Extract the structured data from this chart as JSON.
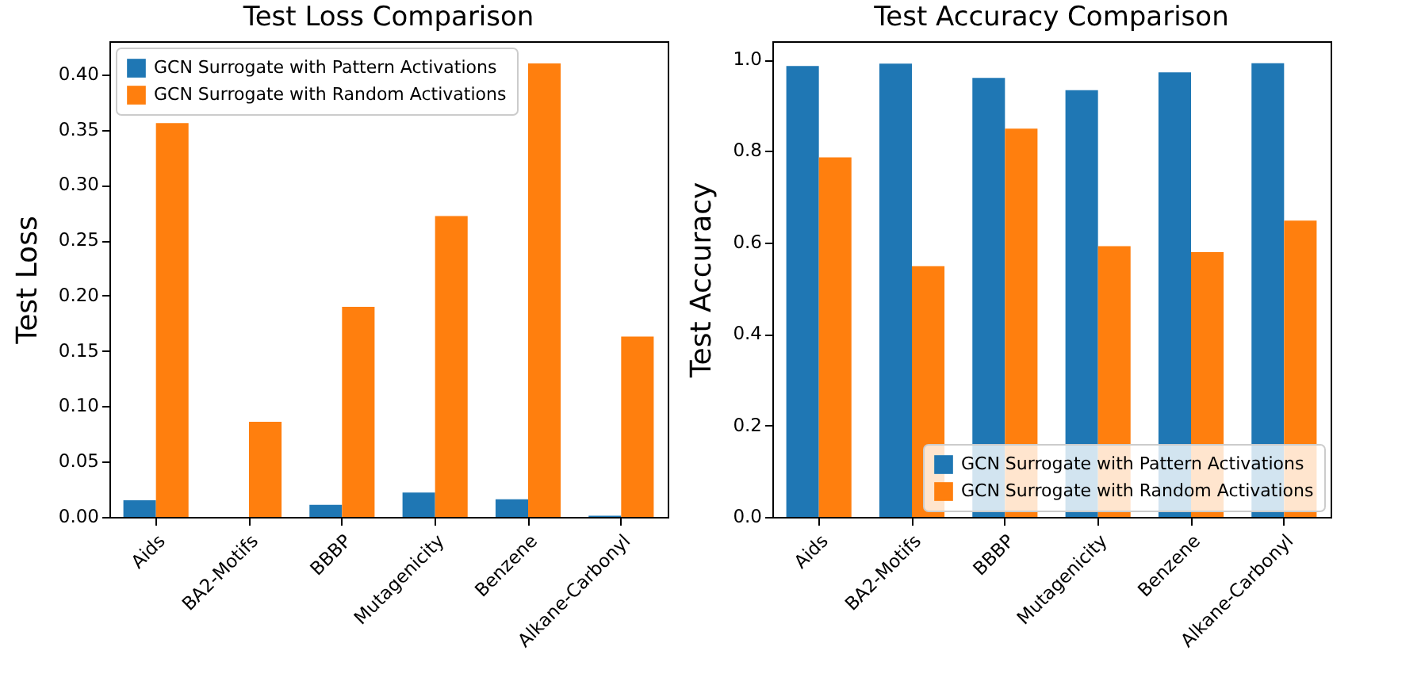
{
  "chart_data": [
    {
      "type": "bar",
      "title": "Test Loss Comparison",
      "ylabel": "Test Loss",
      "categories": [
        "Aids",
        "BA2-Motifs",
        "BBBP",
        "Mutagenicity",
        "Benzene",
        "Alkane-Carbonyl"
      ],
      "series": [
        {
          "name": "GCN Surrogate with Pattern Activations",
          "color": "#1f77b4",
          "values": [
            0.015,
            0.0,
            0.011,
            0.022,
            0.016,
            0.001
          ]
        },
        {
          "name": "GCN Surrogate with Random Activations",
          "color": "#ff7f0e",
          "values": [
            0.356,
            0.086,
            0.19,
            0.272,
            0.41,
            0.163
          ]
        }
      ],
      "ylim": [
        0,
        0.43
      ],
      "yticks": [
        {
          "value": 0,
          "label": "0.00"
        },
        0.05,
        {
          "value": 0.1,
          "label": "0.10"
        },
        0.15,
        {
          "value": 0.2,
          "label": "0.20"
        },
        0.25,
        {
          "value": 0.3,
          "label": "0.30"
        },
        0.35,
        {
          "value": 0.4,
          "label": "0.40"
        }
      ],
      "legend": "top left",
      "grid": false
    },
    {
      "type": "bar",
      "title": "Test Accuracy Comparison",
      "ylabel": "Test Accuracy",
      "categories": [
        "Aids",
        "BA2-Motifs",
        "BBBP",
        "Mutagenicity",
        "Benzene",
        "Alkane-Carbonyl"
      ],
      "series": [
        {
          "name": "GCN Surrogate with Pattern Activations",
          "color": "#1f77b4",
          "values": [
            0.986,
            0.991,
            0.96,
            0.933,
            0.972,
            0.992
          ]
        },
        {
          "name": "GCN Surrogate with Random Activations",
          "color": "#ff7f0e",
          "values": [
            0.786,
            0.548,
            0.849,
            0.592,
            0.579,
            0.648
          ]
        }
      ],
      "ylim": [
        0,
        1.04
      ],
      "yticks": [
        {
          "value": 0,
          "label": "0.0"
        },
        0.2,
        0.4,
        0.6,
        0.8,
        {
          "value": 1,
          "label": "1.0"
        }
      ],
      "legend": "bottom right",
      "grid": false
    }
  ]
}
